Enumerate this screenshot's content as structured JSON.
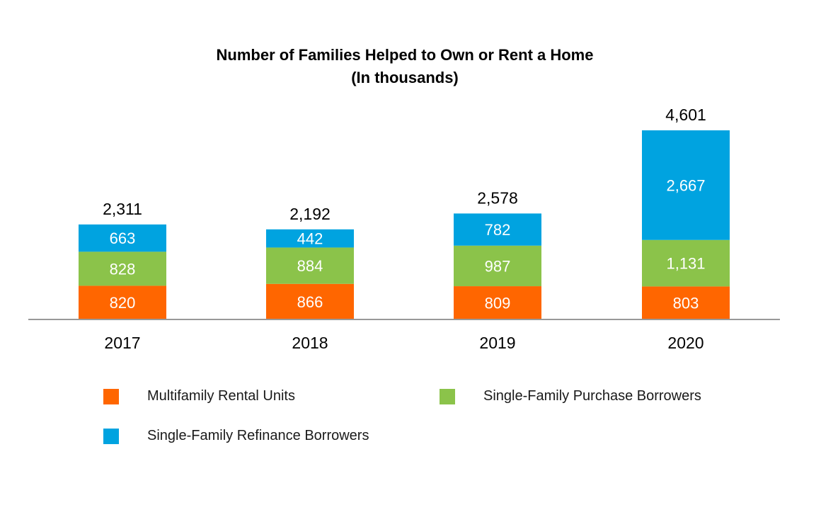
{
  "chart_data": {
    "type": "bar",
    "stacked": true,
    "title": "Number of Families Helped to Own or Rent a Home",
    "subtitle": "(In thousands)",
    "categories": [
      "2017",
      "2018",
      "2019",
      "2020"
    ],
    "series": [
      {
        "name": "Multifamily Rental Units",
        "values": [
          820,
          866,
          809,
          803
        ],
        "color": "#ff6600"
      },
      {
        "name": "Single-Family Purchase Borrowers",
        "values": [
          828,
          884,
          987,
          1131
        ],
        "color": "#8bc34a"
      },
      {
        "name": "Single-Family Refinance Borrowers",
        "values": [
          663,
          442,
          782,
          2667
        ],
        "color": "#00a3e0"
      }
    ],
    "value_labels": [
      [
        "820",
        "866",
        "809",
        "803"
      ],
      [
        "828",
        "884",
        "987",
        "1,131"
      ],
      [
        "663",
        "442",
        "782",
        "2,667"
      ]
    ],
    "totals": [
      2311,
      2192,
      2578,
      4601
    ],
    "total_labels": [
      "2,311",
      "2,192",
      "2,578",
      "4,601"
    ],
    "ylim": [
      0,
      4601
    ],
    "grid": false,
    "legend_position": "bottom"
  },
  "legend": {
    "items": [
      {
        "label": "Multifamily Rental Units",
        "color": "#ff6600"
      },
      {
        "label": "Single-Family Purchase Borrowers",
        "color": "#8bc34a"
      },
      {
        "label": "Single-Family Refinance Borrowers",
        "color": "#00a3e0"
      }
    ]
  },
  "colors": {
    "axis": "#999999",
    "segment_label": "#ffffff",
    "text": "#000000"
  }
}
